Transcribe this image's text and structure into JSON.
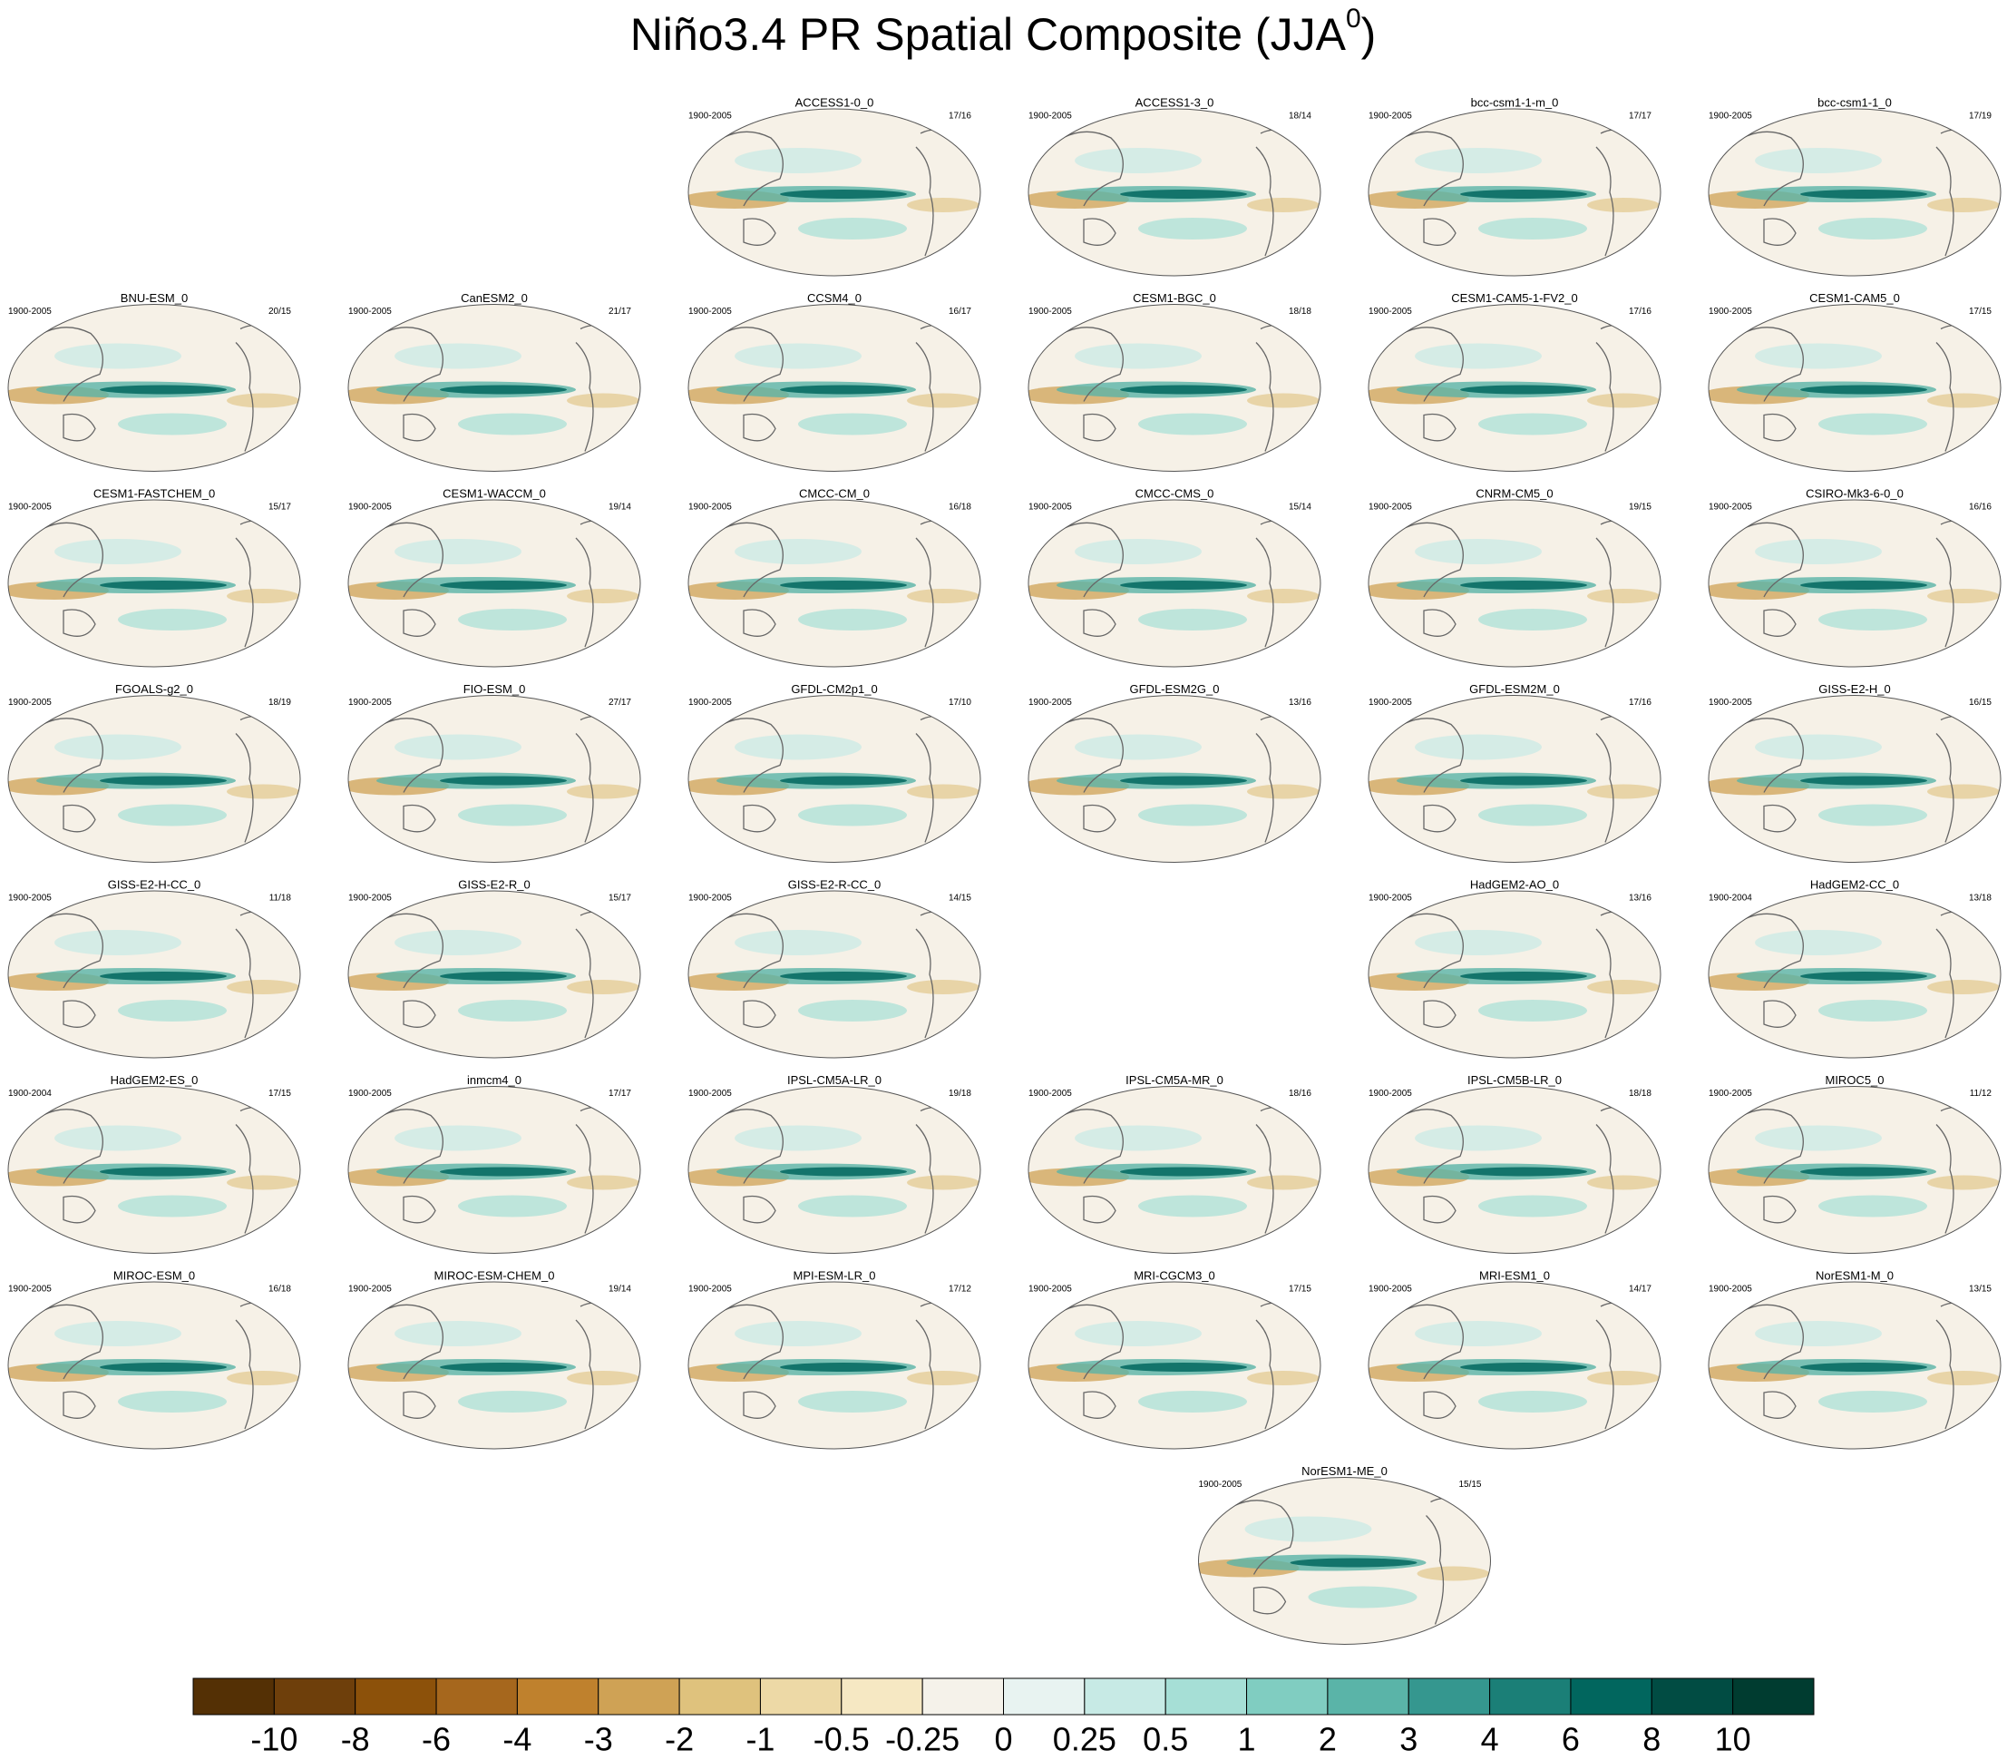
{
  "title": {
    "text": "Niño3.4 PR Spatial Composite (JJA",
    "superscript": "0",
    "close": ")"
  },
  "panels": [
    {
      "name": "ACCESS1-0_0",
      "period": "1900-2005",
      "count": "17/16"
    },
    {
      "name": "ACCESS1-3_0",
      "period": "1900-2005",
      "count": "18/14"
    },
    {
      "name": "bcc-csm1-1-m_0",
      "period": "1900-2005",
      "count": "17/17"
    },
    {
      "name": "bcc-csm1-1_0",
      "period": "1900-2005",
      "count": "17/19"
    },
    {
      "name": "BNU-ESM_0",
      "period": "1900-2005",
      "count": "20/15"
    },
    {
      "name": "CanESM2_0",
      "period": "1900-2005",
      "count": "21/17"
    },
    {
      "name": "CCSM4_0",
      "period": "1900-2005",
      "count": "16/17"
    },
    {
      "name": "CESM1-BGC_0",
      "period": "1900-2005",
      "count": "18/18"
    },
    {
      "name": "CESM1-CAM5-1-FV2_0",
      "period": "1900-2005",
      "count": "17/16"
    },
    {
      "name": "CESM1-CAM5_0",
      "period": "1900-2005",
      "count": "17/15"
    },
    {
      "name": "CESM1-FASTCHEM_0",
      "period": "1900-2005",
      "count": "15/17"
    },
    {
      "name": "CESM1-WACCM_0",
      "period": "1900-2005",
      "count": "19/14"
    },
    {
      "name": "CMCC-CM_0",
      "period": "1900-2005",
      "count": "16/18"
    },
    {
      "name": "CMCC-CMS_0",
      "period": "1900-2005",
      "count": "15/14"
    },
    {
      "name": "CNRM-CM5_0",
      "period": "1900-2005",
      "count": "19/15"
    },
    {
      "name": "CSIRO-Mk3-6-0_0",
      "period": "1900-2005",
      "count": "16/16"
    },
    {
      "name": "FGOALS-g2_0",
      "period": "1900-2005",
      "count": "18/19"
    },
    {
      "name": "FIO-ESM_0",
      "period": "1900-2005",
      "count": "27/17"
    },
    {
      "name": "GFDL-CM2p1_0",
      "period": "1900-2005",
      "count": "17/10"
    },
    {
      "name": "GFDL-ESM2G_0",
      "period": "1900-2005",
      "count": "13/16"
    },
    {
      "name": "GFDL-ESM2M_0",
      "period": "1900-2005",
      "count": "17/16"
    },
    {
      "name": "GISS-E2-H_0",
      "period": "1900-2005",
      "count": "16/15"
    },
    {
      "name": "GISS-E2-H-CC_0",
      "period": "1900-2005",
      "count": "11/18"
    },
    {
      "name": "GISS-E2-R_0",
      "period": "1900-2005",
      "count": "15/17"
    },
    {
      "name": "GISS-E2-R-CC_0",
      "period": "1900-2005",
      "count": "14/15"
    },
    {
      "name": "HadGEM2-AO_0",
      "period": "1900-2005",
      "count": "13/16"
    },
    {
      "name": "HadGEM2-CC_0",
      "period": "1900-2004",
      "count": "13/18"
    },
    {
      "name": "HadGEM2-ES_0",
      "period": "1900-2004",
      "count": "17/15"
    },
    {
      "name": "inmcm4_0",
      "period": "1900-2005",
      "count": "17/17"
    },
    {
      "name": "IPSL-CM5A-LR_0",
      "period": "1900-2005",
      "count": "19/18"
    },
    {
      "name": "IPSL-CM5A-MR_0",
      "period": "1900-2005",
      "count": "18/16"
    },
    {
      "name": "IPSL-CM5B-LR_0",
      "period": "1900-2005",
      "count": "18/18"
    },
    {
      "name": "MIROC5_0",
      "period": "1900-2005",
      "count": "11/12"
    },
    {
      "name": "MIROC-ESM_0",
      "period": "1900-2005",
      "count": "16/18"
    },
    {
      "name": "MIROC-ESM-CHEM_0",
      "period": "1900-2005",
      "count": "19/14"
    },
    {
      "name": "MPI-ESM-LR_0",
      "period": "1900-2005",
      "count": "17/12"
    },
    {
      "name": "MRI-CGCM3_0",
      "period": "1900-2005",
      "count": "17/15"
    },
    {
      "name": "MRI-ESM1_0",
      "period": "1900-2005",
      "count": "14/17"
    },
    {
      "name": "NorESM1-M_0",
      "period": "1900-2005",
      "count": "13/15"
    },
    {
      "name": "NorESM1-ME_0",
      "period": "1900-2005",
      "count": "15/15"
    }
  ],
  "colorbar": {
    "colors": [
      "#543005",
      "#6e3f0b",
      "#8c510a",
      "#a6671d",
      "#bf812d",
      "#cfa255",
      "#dfc27d",
      "#edd9a6",
      "#f6e8c3",
      "#f5f2ea",
      "#e8f3f1",
      "#c7eae5",
      "#a6dfd6",
      "#80cdc1",
      "#5ab4a8",
      "#35978f",
      "#1b7f77",
      "#01665e",
      "#014c43",
      "#003c30"
    ],
    "levels": [
      -10,
      -8,
      -6,
      -4,
      -3,
      -2,
      -1,
      -0.5,
      -0.25,
      0,
      0.25,
      0.5,
      1,
      2,
      3,
      4,
      6,
      8,
      10
    ]
  }
}
